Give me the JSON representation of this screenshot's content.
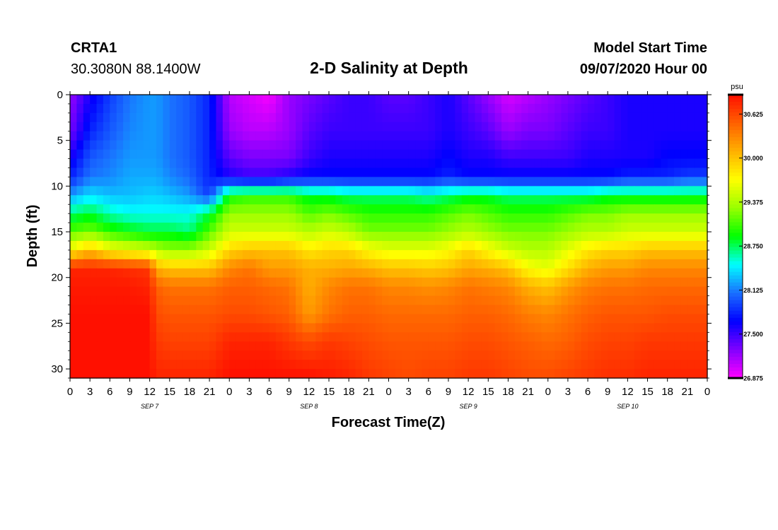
{
  "header": {
    "station": "CRTA1",
    "coords": "30.3080N 88.1400W",
    "title": "2-D Salinity at Depth",
    "start_label": "Model Start Time",
    "start_value": "09/07/2020 Hour 00"
  },
  "colors": {
    "stops": [
      "#ff00ff",
      "#8000ff",
      "#0000ff",
      "#1a6fff",
      "#00ffff",
      "#00ff00",
      "#99ff00",
      "#ffff00",
      "#ffb000",
      "#ff6000",
      "#ff1000"
    ]
  },
  "chart_data": {
    "type": "heatmap",
    "title": "2-D Salinity at Depth",
    "xlabel": "Forecast Time(Z)",
    "ylabel": "Depth (ft)",
    "x_hours": [
      0,
      96
    ],
    "y_range": [
      0,
      31
    ],
    "y_ticks": [
      0,
      5,
      10,
      15,
      20,
      25,
      30
    ],
    "x_tick_labels": [
      "0",
      "3",
      "6",
      "9",
      "12",
      "15",
      "18",
      "21",
      "0",
      "3",
      "6",
      "9",
      "12",
      "15",
      "18",
      "21",
      "0",
      "3",
      "6",
      "9",
      "12",
      "15",
      "18",
      "21",
      "0",
      "3",
      "6",
      "9",
      "12",
      "15",
      "18",
      "21",
      "0"
    ],
    "day_labels": [
      "SEP 7",
      "SEP 8",
      "SEP 9",
      "SEP 10"
    ],
    "colorbar": {
      "unit": "psu",
      "min": 26.875,
      "max": 30.9,
      "tick_values": [
        "30.625",
        "30.000",
        "29.375",
        "28.750",
        "28.125",
        "27.500",
        "26.875"
      ]
    },
    "depths": [
      0,
      4,
      7,
      9,
      11,
      13,
      15,
      17,
      19,
      21,
      24,
      27,
      31
    ],
    "times": [
      0,
      3,
      6,
      9,
      12,
      13,
      15,
      18,
      21,
      24,
      27,
      30,
      33,
      36,
      39,
      42,
      45,
      48,
      51,
      54,
      57,
      60,
      63,
      66,
      69,
      72,
      75,
      78,
      81,
      84,
      87,
      90,
      93,
      96
    ],
    "salinity_by_time": [
      [
        27.2,
        27.3,
        27.6,
        27.8,
        28.2,
        28.7,
        29.1,
        29.7,
        30.8,
        30.85,
        30.9,
        30.9,
        30.9
      ],
      [
        27.6,
        27.8,
        28.0,
        28.1,
        28.4,
        28.8,
        29.2,
        30.0,
        30.8,
        30.85,
        30.9,
        30.9,
        30.9
      ],
      [
        27.9,
        28.0,
        28.1,
        28.15,
        28.3,
        28.6,
        29.0,
        29.7,
        30.8,
        30.85,
        30.9,
        30.9,
        30.9
      ],
      [
        28.1,
        28.15,
        28.2,
        28.25,
        28.3,
        28.5,
        28.9,
        29.6,
        30.75,
        30.85,
        30.9,
        30.9,
        30.9
      ],
      [
        28.2,
        28.2,
        28.2,
        28.25,
        28.35,
        28.5,
        28.8,
        29.5,
        30.7,
        30.8,
        30.9,
        30.9,
        30.9
      ],
      [
        28.2,
        28.2,
        28.2,
        28.25,
        28.35,
        28.5,
        28.8,
        29.4,
        30.1,
        30.5,
        30.6,
        30.7,
        30.8
      ],
      [
        28.1,
        28.1,
        28.1,
        28.15,
        28.3,
        28.5,
        28.8,
        29.3,
        30.0,
        30.4,
        30.55,
        30.65,
        30.8
      ],
      [
        28.0,
        28.0,
        28.0,
        28.05,
        28.2,
        28.5,
        28.7,
        29.3,
        30.0,
        30.4,
        30.55,
        30.65,
        30.8
      ],
      [
        27.8,
        27.8,
        27.8,
        27.8,
        27.9,
        28.8,
        29.1,
        29.5,
        30.0,
        30.4,
        30.55,
        30.65,
        30.8
      ],
      [
        27.1,
        27.2,
        27.4,
        27.6,
        28.9,
        29.3,
        29.5,
        29.9,
        30.3,
        30.5,
        30.6,
        30.8,
        30.9
      ],
      [
        27.0,
        27.1,
        27.3,
        27.5,
        29.0,
        29.3,
        29.5,
        30.0,
        30.4,
        30.5,
        30.6,
        30.8,
        30.9
      ],
      [
        26.9,
        27.1,
        27.3,
        27.5,
        29.0,
        29.3,
        29.5,
        30.0,
        30.2,
        30.45,
        30.55,
        30.8,
        30.9
      ],
      [
        27.2,
        27.2,
        27.3,
        27.6,
        29.0,
        29.3,
        29.5,
        30.0,
        30.2,
        30.4,
        30.5,
        30.7,
        30.9
      ],
      [
        27.3,
        27.4,
        27.5,
        27.7,
        28.8,
        29.1,
        29.4,
        29.8,
        30.1,
        30.1,
        30.2,
        30.6,
        30.9
      ],
      [
        27.4,
        27.5,
        27.6,
        27.7,
        28.8,
        29.2,
        29.5,
        29.9,
        30.1,
        30.3,
        30.4,
        30.7,
        30.85
      ],
      [
        27.5,
        27.5,
        27.6,
        27.7,
        28.7,
        29.1,
        29.4,
        29.9,
        30.15,
        30.4,
        30.5,
        30.65,
        30.8
      ],
      [
        27.5,
        27.5,
        27.6,
        27.7,
        28.7,
        29.0,
        29.2,
        29.7,
        30.1,
        30.4,
        30.5,
        30.6,
        30.7
      ],
      [
        27.4,
        27.5,
        27.6,
        27.7,
        28.7,
        29.0,
        29.2,
        29.6,
        30.0,
        30.3,
        30.45,
        30.55,
        30.65
      ],
      [
        27.4,
        27.5,
        27.6,
        27.7,
        28.7,
        29.0,
        29.2,
        29.6,
        30.0,
        30.3,
        30.45,
        30.55,
        30.6
      ],
      [
        27.5,
        27.5,
        27.6,
        27.7,
        28.6,
        29.0,
        29.2,
        29.6,
        29.95,
        30.25,
        30.45,
        30.55,
        30.65
      ],
      [
        27.6,
        27.6,
        27.7,
        27.8,
        28.7,
        29.1,
        29.3,
        29.7,
        30.0,
        30.3,
        30.45,
        30.55,
        30.65
      ],
      [
        27.4,
        27.5,
        27.6,
        27.7,
        28.8,
        29.2,
        29.4,
        29.9,
        30.15,
        30.4,
        30.5,
        30.6,
        30.7
      ],
      [
        27.2,
        27.4,
        27.6,
        27.7,
        28.8,
        29.1,
        29.3,
        29.7,
        30.1,
        30.35,
        30.5,
        30.6,
        30.7
      ],
      [
        27.0,
        27.2,
        27.5,
        27.7,
        28.7,
        29.0,
        29.2,
        29.5,
        30.0,
        30.3,
        30.45,
        30.55,
        30.65
      ],
      [
        27.1,
        27.3,
        27.5,
        27.7,
        28.7,
        29.0,
        29.2,
        29.4,
        29.7,
        30.1,
        30.35,
        30.5,
        30.6
      ],
      [
        27.2,
        27.3,
        27.5,
        27.7,
        28.7,
        29.0,
        29.2,
        29.4,
        29.6,
        30.0,
        30.3,
        30.45,
        30.6
      ],
      [
        27.3,
        27.4,
        27.5,
        27.7,
        28.7,
        29.1,
        29.3,
        29.6,
        29.85,
        30.2,
        30.4,
        30.5,
        30.65
      ],
      [
        27.4,
        27.5,
        27.6,
        27.7,
        28.7,
        29.2,
        29.4,
        29.8,
        30.1,
        30.35,
        30.5,
        30.6,
        30.7
      ],
      [
        27.5,
        27.5,
        27.6,
        27.7,
        28.8,
        29.2,
        29.4,
        29.9,
        30.2,
        30.4,
        30.55,
        30.65,
        30.75
      ],
      [
        27.6,
        27.6,
        27.6,
        27.8,
        28.8,
        29.3,
        29.5,
        29.9,
        30.2,
        30.4,
        30.55,
        30.65,
        30.75
      ],
      [
        27.6,
        27.6,
        27.6,
        27.8,
        28.8,
        29.3,
        29.5,
        30.0,
        30.3,
        30.45,
        30.55,
        30.7,
        30.8
      ],
      [
        27.6,
        27.6,
        27.7,
        27.8,
        28.8,
        29.3,
        29.5,
        30.0,
        30.3,
        30.45,
        30.6,
        30.7,
        30.8
      ],
      [
        27.6,
        27.6,
        27.7,
        27.9,
        28.8,
        29.3,
        29.5,
        30.0,
        30.3,
        30.45,
        30.6,
        30.7,
        30.8
      ],
      [
        27.6,
        27.6,
        27.7,
        27.9,
        28.8,
        29.3,
        29.5,
        30.0,
        30.3,
        30.45,
        30.6,
        30.7,
        30.8
      ]
    ]
  }
}
